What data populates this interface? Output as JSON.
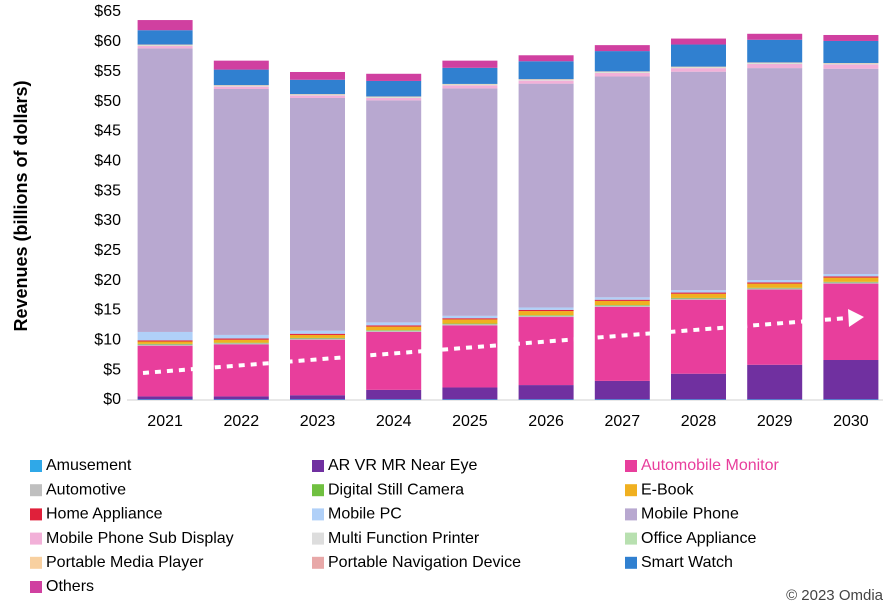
{
  "chart_data": {
    "type": "stacked_bar",
    "ylabel": "Revenues (billions of dollars)",
    "annotation": "© 2023 Omdia",
    "categories": [
      "2021",
      "2022",
      "2023",
      "2024",
      "2025",
      "2026",
      "2027",
      "2028",
      "2029",
      "2030"
    ],
    "ylim": [
      0,
      65
    ],
    "yticks": [
      {
        "value": 0,
        "label": "$0"
      },
      {
        "value": 5,
        "label": "$5"
      },
      {
        "value": 10,
        "label": "$10"
      },
      {
        "value": 15,
        "label": "$15"
      },
      {
        "value": 20,
        "label": "$20"
      },
      {
        "value": 25,
        "label": "$25"
      },
      {
        "value": 30,
        "label": "$30"
      },
      {
        "value": 35,
        "label": "$35"
      },
      {
        "value": 40,
        "label": "$40"
      },
      {
        "value": 45,
        "label": "$45"
      },
      {
        "value": 50,
        "label": "$50"
      },
      {
        "value": 55,
        "label": "$55"
      },
      {
        "value": 60,
        "label": "$60"
      },
      {
        "value": 65,
        "label": "$65"
      }
    ],
    "grid": false,
    "series": [
      {
        "name": "Amusement",
        "color": "#2fa8e8",
        "values": [
          0.1,
          0.1,
          0.1,
          0.1,
          0.1,
          0.1,
          0.1,
          0.1,
          0.1,
          0.1
        ]
      },
      {
        "name": "AR VR MR Near Eye",
        "color": "#7030a0",
        "values": [
          0.5,
          0.5,
          0.7,
          1.6,
          2.0,
          2.4,
          3.1,
          4.3,
          5.8,
          6.6
        ]
      },
      {
        "name": "Automobile Monitor",
        "color": "#e83e9c",
        "values": [
          8.5,
          8.7,
          9.3,
          9.7,
          10.4,
          11.4,
          12.4,
          12.4,
          12.6,
          12.8
        ]
      },
      {
        "name": "Automotive",
        "color": "#bfbfbf",
        "values": [
          0.2,
          0.2,
          0.2,
          0.2,
          0.2,
          0.2,
          0.2,
          0.2,
          0.2,
          0.2
        ]
      },
      {
        "name": "Digital Still Camera",
        "color": "#70c040",
        "values": [
          0.1,
          0.1,
          0.1,
          0.1,
          0.1,
          0.1,
          0.1,
          0.1,
          0.1,
          0.1
        ]
      },
      {
        "name": "E-Book",
        "color": "#f0b020",
        "values": [
          0.4,
          0.5,
          0.5,
          0.6,
          0.7,
          0.7,
          0.7,
          0.7,
          0.7,
          0.7
        ]
      },
      {
        "name": "Home Appliance",
        "color": "#e0203a",
        "values": [
          0.2,
          0.2,
          0.2,
          0.2,
          0.2,
          0.2,
          0.2,
          0.2,
          0.2,
          0.2
        ]
      },
      {
        "name": "Mobile PC",
        "color": "#b0d0f8",
        "values": [
          1.4,
          0.6,
          0.5,
          0.5,
          0.4,
          0.4,
          0.4,
          0.4,
          0.4,
          0.4
        ]
      },
      {
        "name": "Mobile Phone",
        "color": "#b8a8d0",
        "values": [
          47.5,
          41.2,
          39.0,
          37.2,
          38.1,
          37.5,
          37.0,
          36.6,
          35.5,
          34.4
        ]
      },
      {
        "name": "Mobile Phone Sub Display",
        "color": "#f2b0d8",
        "values": [
          0.4,
          0.4,
          0.4,
          0.4,
          0.5,
          0.5,
          0.6,
          0.6,
          0.7,
          0.7
        ]
      },
      {
        "name": "Multi Function Printer",
        "color": "#dddddd",
        "values": [
          0.1,
          0.1,
          0.1,
          0.1,
          0.1,
          0.1,
          0.1,
          0.1,
          0.1,
          0.1
        ]
      },
      {
        "name": "Office Appliance",
        "color": "#b8e0b0",
        "values": [
          0.05,
          0.05,
          0.05,
          0.05,
          0.05,
          0.05,
          0.05,
          0.05,
          0.05,
          0.05
        ]
      },
      {
        "name": "Portable Media Player",
        "color": "#f8d0a0",
        "values": [
          0.05,
          0.05,
          0.05,
          0.05,
          0.05,
          0.05,
          0.05,
          0.05,
          0.05,
          0.05
        ]
      },
      {
        "name": "Portable Navigation Device",
        "color": "#e8a8a8",
        "values": [
          0.05,
          0.05,
          0.05,
          0.05,
          0.05,
          0.05,
          0.05,
          0.05,
          0.05,
          0.05
        ]
      },
      {
        "name": "Smart Watch",
        "color": "#3080d0",
        "values": [
          2.4,
          2.6,
          2.4,
          2.6,
          2.7,
          3.0,
          3.4,
          3.7,
          3.8,
          3.7
        ]
      },
      {
        "name": "Others",
        "color": "#d040a0",
        "values": [
          1.7,
          1.5,
          1.3,
          1.2,
          1.2,
          1.0,
          1.0,
          1.0,
          1.0,
          1.0
        ]
      }
    ]
  }
}
